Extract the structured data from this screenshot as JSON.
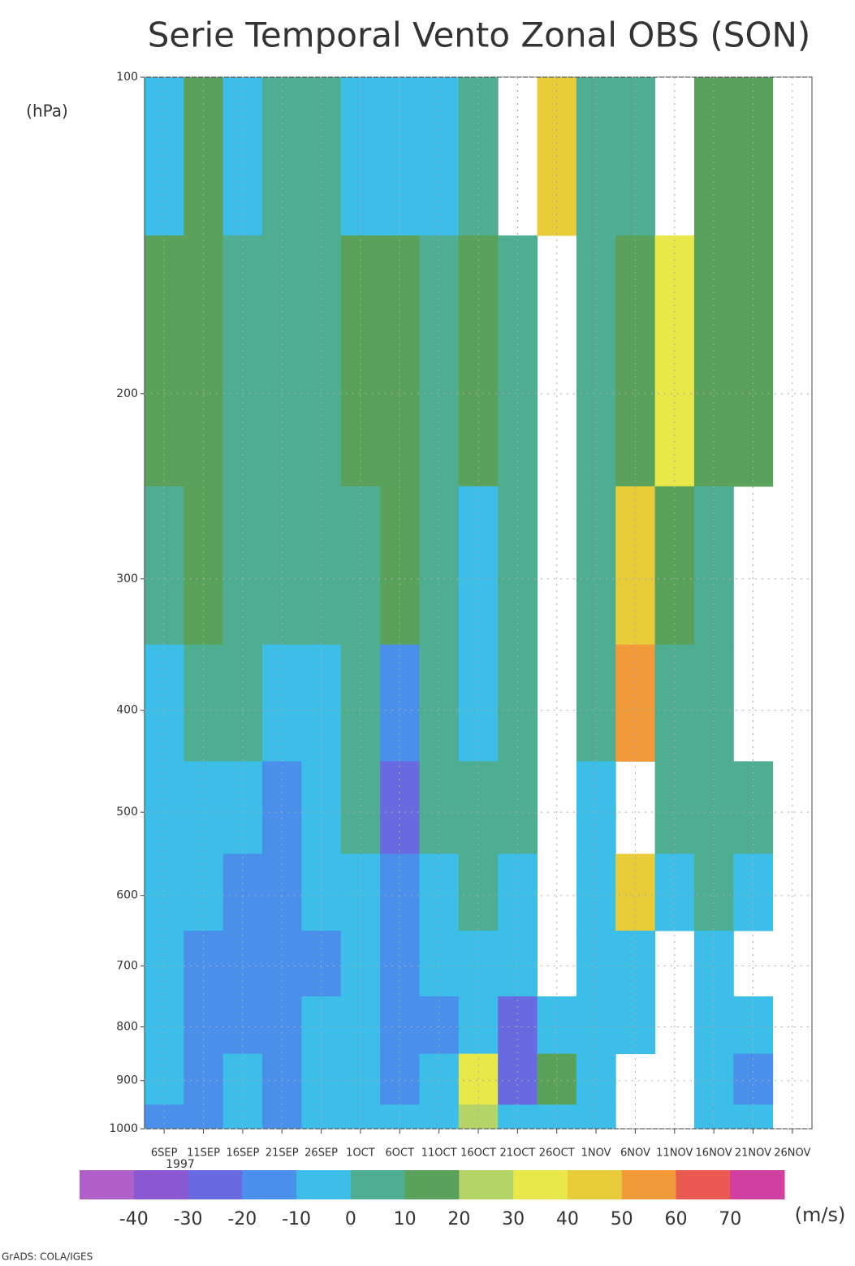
{
  "chart_data": {
    "type": "heatmap",
    "title": "Serie Temporal Vento Zonal OBS (SON)",
    "y_label": "(hPa)",
    "categories": [
      "6SEP",
      "11SEP",
      "16SEP",
      "21SEP",
      "26SEP",
      "1OCT",
      "6OCT",
      "11OCT",
      "16OCT",
      "21OCT",
      "26OCT",
      "1NOV",
      "6NOV",
      "11NOV",
      "16NOV",
      "21NOV",
      "26NOV"
    ],
    "year_label": "1997",
    "y": [
      100,
      200,
      300,
      400,
      500,
      600,
      700,
      800,
      900,
      1000
    ],
    "ylim": [
      1000,
      100
    ],
    "yticks": [
      100,
      200,
      300,
      400,
      500,
      600,
      700,
      800,
      900,
      1000
    ],
    "ylog": true,
    "grid": true,
    "z": [
      [
        -5,
        15,
        -5,
        5,
        5,
        -5,
        -5,
        -5,
        5,
        null,
        45,
        5,
        5,
        null,
        15,
        15,
        null
      ],
      [
        15,
        15,
        5,
        5,
        5,
        15,
        15,
        5,
        15,
        5,
        null,
        5,
        15,
        35,
        15,
        15,
        null
      ],
      [
        5,
        15,
        5,
        5,
        5,
        5,
        15,
        5,
        -5,
        5,
        null,
        5,
        45,
        15,
        5,
        null,
        null
      ],
      [
        -5,
        5,
        5,
        -5,
        -5,
        5,
        -15,
        5,
        -5,
        5,
        null,
        5,
        55,
        5,
        5,
        null,
        null
      ],
      [
        -5,
        -5,
        -5,
        -15,
        -5,
        5,
        -25,
        5,
        5,
        5,
        null,
        -5,
        null,
        5,
        5,
        5,
        null
      ],
      [
        -5,
        -5,
        -15,
        -15,
        -5,
        -5,
        -15,
        -5,
        5,
        -5,
        null,
        -5,
        45,
        -5,
        5,
        -5,
        null
      ],
      [
        -5,
        -15,
        -15,
        -15,
        -15,
        -5,
        -15,
        -5,
        -5,
        -5,
        null,
        -5,
        -5,
        null,
        -5,
        null,
        null
      ],
      [
        -5,
        -15,
        -15,
        -15,
        -5,
        -5,
        -15,
        -15,
        -5,
        -25,
        -5,
        -5,
        -5,
        null,
        -5,
        -5,
        null
      ],
      [
        -5,
        -15,
        -5,
        -15,
        -5,
        -5,
        -15,
        -5,
        35,
        -25,
        15,
        -5,
        null,
        null,
        -5,
        -15,
        null
      ],
      [
        -15,
        -15,
        -5,
        -15,
        -5,
        -5,
        -5,
        -5,
        25,
        -5,
        -5,
        -5,
        null,
        null,
        -5,
        -5,
        null
      ]
    ],
    "colorbar": {
      "levels": [
        -40,
        -30,
        -20,
        -10,
        0,
        10,
        20,
        30,
        40,
        50,
        60,
        70
      ],
      "colors": [
        "#b060c8",
        "#8a58d0",
        "#6a6ae0",
        "#4a90ea",
        "#3cbee8",
        "#4fae92",
        "#5aa25c",
        "#b4d468",
        "#e8e84a",
        "#e8cc3a",
        "#f09a3a",
        "#ea5a52",
        "#d040a0"
      ],
      "label": "(m/s)"
    },
    "footer": "GrADS: COLA/IGES"
  }
}
